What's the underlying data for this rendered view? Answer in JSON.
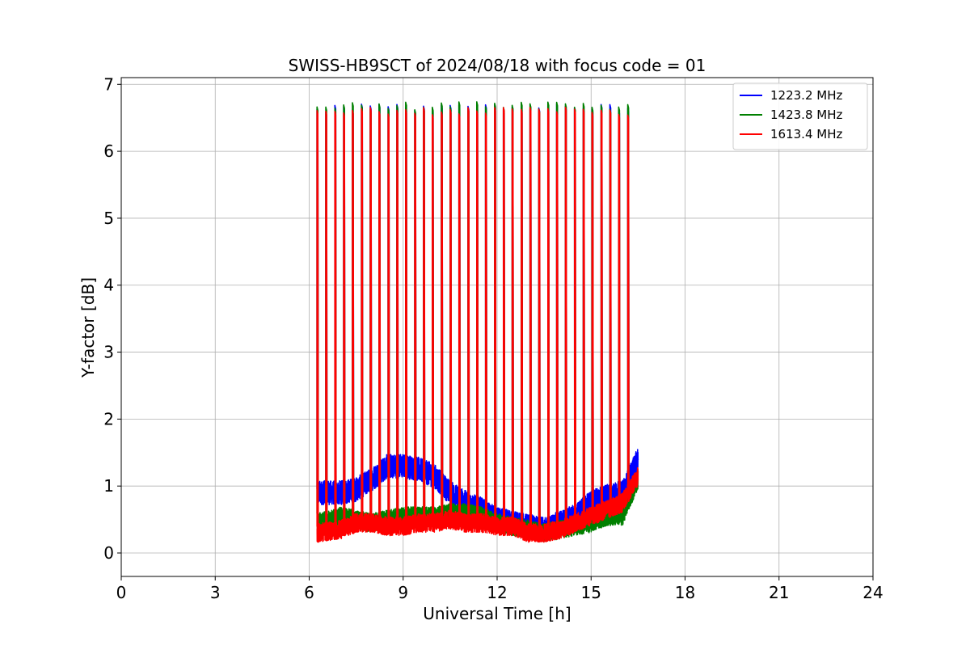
{
  "chart_data": {
    "type": "line",
    "title": "SWISS-HB9SCT of 2024/08/18 with focus code = 01",
    "xlabel": "Universal Time [h]",
    "ylabel": "Y-factor [dB]",
    "xlim": [
      0,
      24
    ],
    "ylim": [
      -0.35,
      7.1
    ],
    "xticks": [
      0,
      3,
      6,
      9,
      12,
      15,
      18,
      21,
      24
    ],
    "yticks": [
      0,
      1,
      2,
      3,
      4,
      5,
      6,
      7
    ],
    "grid": true,
    "legend_position": "upper right",
    "spike_times_h": [
      6.25,
      6.53,
      6.82,
      7.1,
      7.38,
      7.67,
      7.95,
      8.23,
      8.52,
      8.8,
      9.08,
      9.37,
      9.65,
      9.93,
      10.22,
      10.5,
      10.78,
      11.07,
      11.35,
      11.63,
      11.92,
      12.2,
      12.48,
      12.77,
      13.05,
      13.33,
      13.62,
      13.9,
      14.18,
      14.47,
      14.75,
      15.03,
      15.32,
      15.6,
      15.88,
      16.17
    ],
    "series": [
      {
        "name": "1223.2 MHz",
        "color": "#0000ff",
        "baseline_points": [
          [
            6.25,
            0.9
          ],
          [
            7.0,
            0.9
          ],
          [
            7.5,
            0.95
          ],
          [
            8.0,
            1.1
          ],
          [
            8.5,
            1.3
          ],
          [
            9.0,
            1.3
          ],
          [
            9.5,
            1.25
          ],
          [
            10.0,
            1.15
          ],
          [
            10.5,
            0.9
          ],
          [
            11.0,
            0.75
          ],
          [
            11.5,
            0.65
          ],
          [
            12.0,
            0.5
          ],
          [
            12.5,
            0.45
          ],
          [
            13.0,
            0.4
          ],
          [
            13.5,
            0.35
          ],
          [
            14.0,
            0.45
          ],
          [
            14.5,
            0.55
          ],
          [
            15.0,
            0.75
          ],
          [
            15.5,
            0.85
          ],
          [
            16.0,
            0.9
          ],
          [
            16.5,
            1.4
          ]
        ],
        "noise": 0.18,
        "spike_peak": 6.65
      },
      {
        "name": "1423.8 MHz",
        "color": "#008000",
        "baseline_points": [
          [
            6.25,
            0.45
          ],
          [
            7.0,
            0.55
          ],
          [
            7.5,
            0.5
          ],
          [
            8.0,
            0.45
          ],
          [
            8.5,
            0.5
          ],
          [
            9.0,
            0.55
          ],
          [
            9.5,
            0.55
          ],
          [
            10.0,
            0.55
          ],
          [
            10.5,
            0.6
          ],
          [
            11.0,
            0.6
          ],
          [
            11.5,
            0.55
          ],
          [
            12.0,
            0.45
          ],
          [
            12.5,
            0.4
          ],
          [
            13.0,
            0.35
          ],
          [
            13.5,
            0.3
          ],
          [
            14.0,
            0.35
          ],
          [
            14.5,
            0.4
          ],
          [
            15.0,
            0.45
          ],
          [
            15.5,
            0.55
          ],
          [
            16.0,
            0.55
          ],
          [
            16.5,
            1.1
          ]
        ],
        "noise": 0.14,
        "spike_peak": 6.68
      },
      {
        "name": "1613.4 MHz",
        "color": "#ff0000",
        "baseline_points": [
          [
            6.25,
            0.3
          ],
          [
            7.0,
            0.35
          ],
          [
            7.5,
            0.45
          ],
          [
            8.0,
            0.45
          ],
          [
            8.5,
            0.4
          ],
          [
            9.0,
            0.4
          ],
          [
            9.5,
            0.45
          ],
          [
            10.0,
            0.45
          ],
          [
            10.5,
            0.5
          ],
          [
            11.0,
            0.45
          ],
          [
            11.5,
            0.45
          ],
          [
            12.0,
            0.4
          ],
          [
            12.5,
            0.4
          ],
          [
            13.0,
            0.3
          ],
          [
            13.5,
            0.3
          ],
          [
            14.0,
            0.35
          ],
          [
            14.5,
            0.45
          ],
          [
            15.0,
            0.55
          ],
          [
            15.5,
            0.65
          ],
          [
            16.0,
            0.75
          ],
          [
            16.5,
            1.15
          ]
        ],
        "noise": 0.14,
        "spike_peak": 6.6
      }
    ]
  }
}
